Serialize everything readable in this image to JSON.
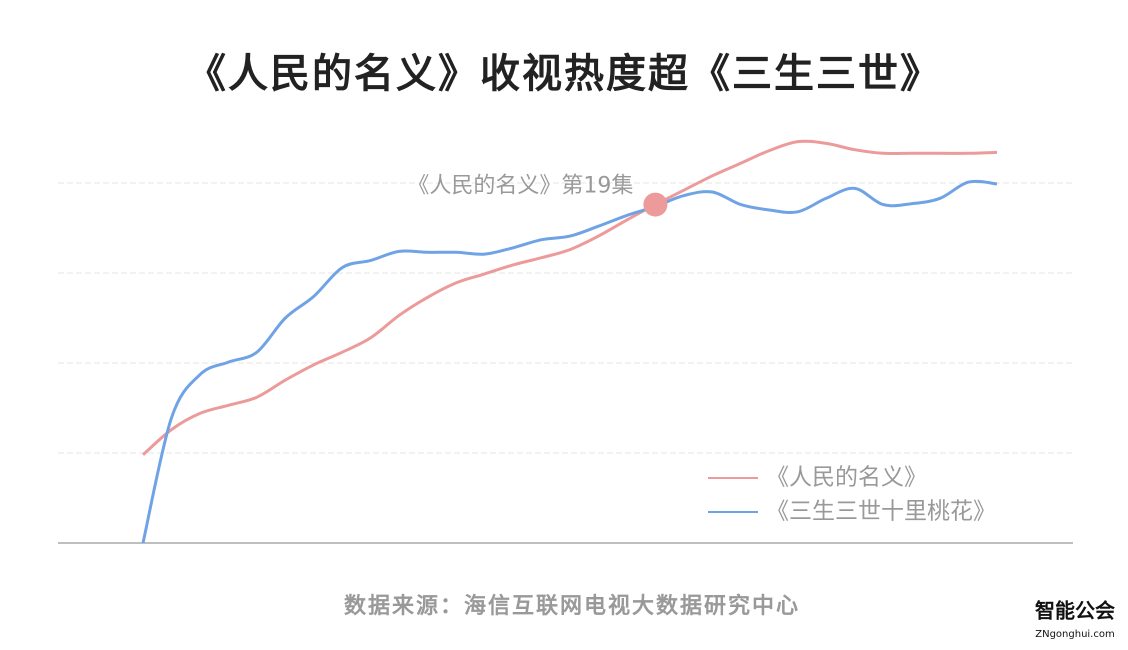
{
  "chart_data": {
    "type": "line",
    "title": "《人民的名义》收视热度超《三生三世》",
    "annotation": "《人民的名义》第19集",
    "annotation_point": 19,
    "source": "数据来源：海信互联网电视大数据研究中心",
    "logo": {
      "name": "智能公会",
      "site": "ZNgonghui.com"
    },
    "x": [
      1,
      2,
      3,
      4,
      5,
      6,
      7,
      8,
      9,
      10,
      11,
      12,
      13,
      14,
      15,
      16,
      17,
      18,
      19,
      20,
      21,
      22,
      23,
      24,
      25,
      26,
      27,
      28,
      29,
      30,
      31
    ],
    "xlim": [
      1,
      31
    ],
    "ylim": [
      0,
      4.5
    ],
    "yticks": [
      0,
      1,
      2,
      3,
      4
    ],
    "grid": true,
    "legend": "lower right",
    "series": [
      {
        "name": "《人民的名义》",
        "color": "#ec9a9a",
        "values": [
          0.98,
          1.26,
          1.44,
          1.53,
          1.62,
          1.81,
          1.98,
          2.12,
          2.28,
          2.53,
          2.73,
          2.89,
          2.99,
          3.09,
          3.17,
          3.26,
          3.41,
          3.59,
          3.76,
          3.92,
          4.08,
          4.22,
          4.36,
          4.46,
          4.44,
          4.37,
          4.33,
          4.33,
          4.33,
          4.33,
          4.34
        ]
      },
      {
        "name": "《三生三世十里桃花》",
        "color": "#6fa3e6",
        "values": [
          0,
          1.39,
          1.87,
          2.01,
          2.12,
          2.5,
          2.74,
          3.06,
          3.14,
          3.24,
          3.23,
          3.23,
          3.21,
          3.28,
          3.37,
          3.41,
          3.52,
          3.64,
          3.74,
          3.86,
          3.9,
          3.76,
          3.7,
          3.68,
          3.83,
          3.94,
          3.76,
          3.77,
          3.83,
          4.01,
          3.99
        ]
      }
    ]
  }
}
